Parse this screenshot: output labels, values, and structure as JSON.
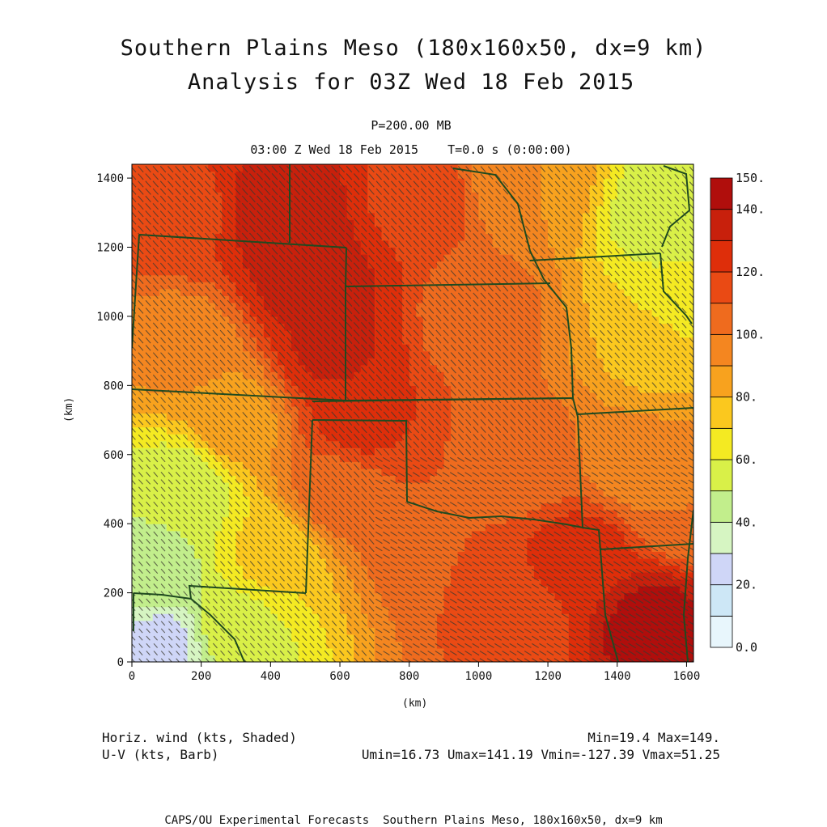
{
  "title": "Southern Plains Meso (180x160x50, dx=9 km)",
  "subtitle": "Analysis for 03Z Wed 18 Feb 2015",
  "level": "P=200.00 MB",
  "timeline": "03:00 Z Wed 18 Feb 2015    T=0.0 s (0:00:00)",
  "footer": {
    "field1": "Horiz. wind (kts, Shaded)",
    "field2": "U-V (kts, Barb)",
    "minmax": "Min=19.4 Max=149.",
    "uv_stats": "Umin=16.73 Umax=141.19 Vmin=-127.39 Vmax=51.25",
    "credit": "CAPS/OU Experimental Forecasts  Southern Plains Meso, 180x160x50, dx=9 km"
  },
  "chart_data": {
    "type": "heatmap",
    "title": "Southern Plains Meso (180x160x50, dx=9 km)",
    "subtitle": "Analysis for 03Z Wed 18 Feb 2015",
    "xlabel": "(km)",
    "ylabel": "(km)",
    "xlim": [
      0,
      1620
    ],
    "ylim": [
      0,
      1440
    ],
    "x_ticks": [
      0,
      200,
      400,
      600,
      800,
      1000,
      1200,
      1400,
      1600
    ],
    "y_ticks": [
      0,
      200,
      400,
      600,
      800,
      1000,
      1200,
      1400
    ],
    "colorbar": {
      "labels": [
        "0.0",
        "20.",
        "40.",
        "60.",
        "80.",
        "100.",
        "120.",
        "140.",
        "150."
      ],
      "levels": [
        0,
        10,
        20,
        30,
        40,
        50,
        60,
        70,
        80,
        90,
        100,
        110,
        120,
        130,
        140,
        150
      ],
      "colors": [
        "#e8f6fc",
        "#cde7f6",
        "#cfd6f7",
        "#d6f5c2",
        "#c2ee8c",
        "#d9f048",
        "#f4ea22",
        "#fbc81e",
        "#f8a21e",
        "#f48620",
        "#ef6b1e",
        "#ea4a14",
        "#de2e0a",
        "#c8200c",
        "#b00e0c"
      ]
    },
    "field_anchors": [
      {
        "x": 450,
        "y": 1300,
        "v": 140
      },
      {
        "x": 520,
        "y": 1100,
        "v": 136
      },
      {
        "x": 580,
        "y": 900,
        "v": 132
      },
      {
        "x": 650,
        "y": 700,
        "v": 124
      },
      {
        "x": 150,
        "y": 1300,
        "v": 118
      },
      {
        "x": 800,
        "y": 1350,
        "v": 118
      },
      {
        "x": 1000,
        "y": 1000,
        "v": 104
      },
      {
        "x": 1150,
        "y": 1400,
        "v": 90
      },
      {
        "x": 1550,
        "y": 1300,
        "v": 52
      },
      {
        "x": 1500,
        "y": 900,
        "v": 78
      },
      {
        "x": 1450,
        "y": 600,
        "v": 92
      },
      {
        "x": 1150,
        "y": 600,
        "v": 104
      },
      {
        "x": 1300,
        "y": 300,
        "v": 126
      },
      {
        "x": 1500,
        "y": 100,
        "v": 145
      },
      {
        "x": 1100,
        "y": 100,
        "v": 112
      },
      {
        "x": 850,
        "y": 400,
        "v": 110
      },
      {
        "x": 600,
        "y": 500,
        "v": 106
      },
      {
        "x": 400,
        "y": 300,
        "v": 72
      },
      {
        "x": 150,
        "y": 500,
        "v": 52
      },
      {
        "x": 60,
        "y": 250,
        "v": 44
      },
      {
        "x": 80,
        "y": 50,
        "v": 26
      },
      {
        "x": 300,
        "y": 100,
        "v": 56
      },
      {
        "x": 150,
        "y": 900,
        "v": 92
      },
      {
        "x": 300,
        "y": 700,
        "v": 86
      },
      {
        "x": 1600,
        "y": 1050,
        "v": 62
      },
      {
        "x": 1600,
        "y": 450,
        "v": 100
      }
    ],
    "wind_barbs": "U-V (kts, Barb)",
    "min": 19.4,
    "max": 149,
    "umin": 16.73,
    "umax": 141.19,
    "vmin": -127.39,
    "vmax": 51.25
  }
}
